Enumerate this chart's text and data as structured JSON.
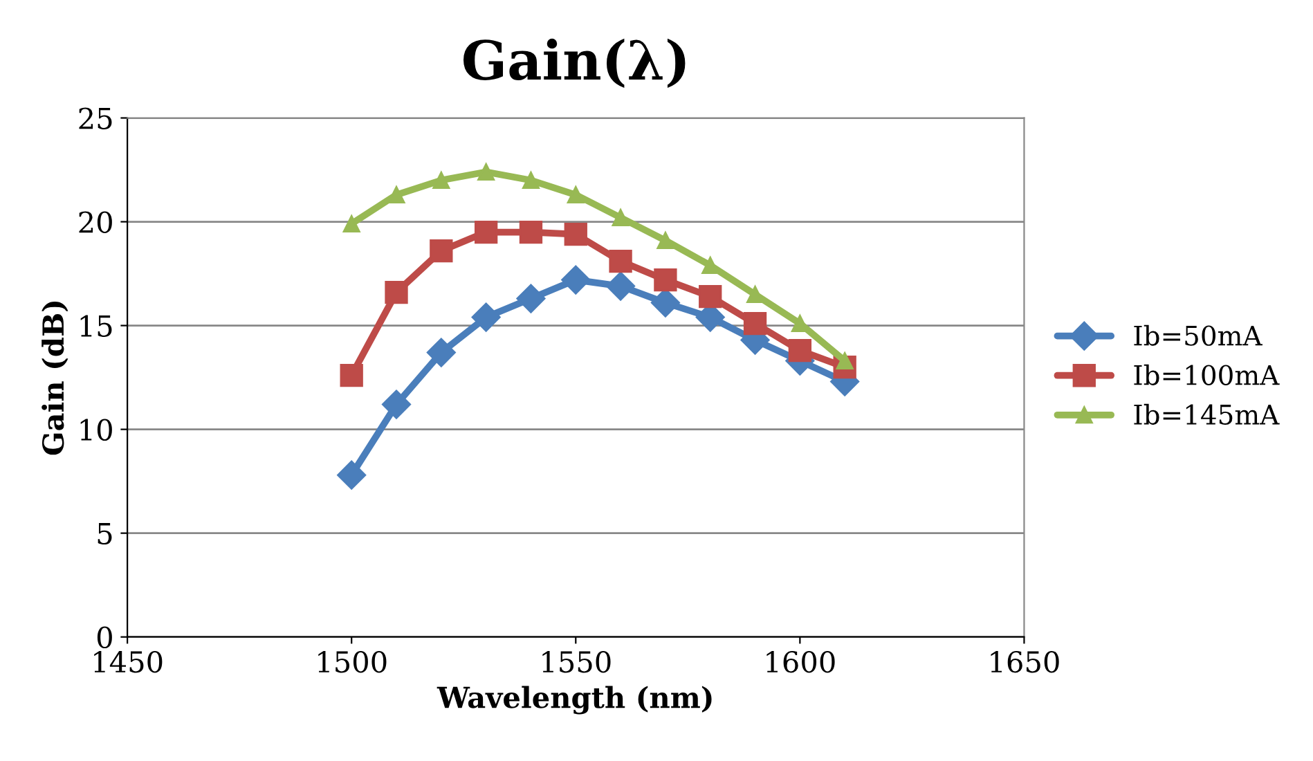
{
  "chart_data": {
    "type": "line",
    "title": "Gain(λ)",
    "xlabel": "Wavelength (nm)",
    "ylabel": "Gain (dB)",
    "x": [
      1500,
      1510,
      1520,
      1530,
      1540,
      1550,
      1560,
      1570,
      1580,
      1590,
      1600,
      1610
    ],
    "series": [
      {
        "name": "Ib=50mA",
        "color": "#4a7ebb",
        "marker": "diamond",
        "values": [
          7.8,
          11.2,
          13.7,
          15.4,
          16.3,
          17.2,
          16.9,
          16.1,
          15.4,
          14.3,
          13.3,
          12.3
        ]
      },
      {
        "name": "Ib=100mA",
        "color": "#be4b48",
        "marker": "square",
        "values": [
          12.6,
          16.6,
          18.6,
          19.5,
          19.5,
          19.4,
          18.1,
          17.2,
          16.4,
          15.1,
          13.8,
          13.0
        ]
      },
      {
        "name": "Ib=145mA",
        "color": "#98b954",
        "marker": "triangle",
        "values": [
          19.9,
          21.3,
          22.0,
          22.4,
          22.0,
          21.3,
          20.2,
          19.1,
          17.9,
          16.5,
          15.1,
          13.3
        ]
      }
    ],
    "xlim": [
      1450,
      1650
    ],
    "xticks": [
      1450,
      1500,
      1550,
      1600,
      1650
    ],
    "ylim": [
      0,
      25
    ],
    "yticks": [
      0,
      5,
      10,
      15,
      20,
      25
    ],
    "grid": "y",
    "legend": "right",
    "line_style": "solid"
  }
}
